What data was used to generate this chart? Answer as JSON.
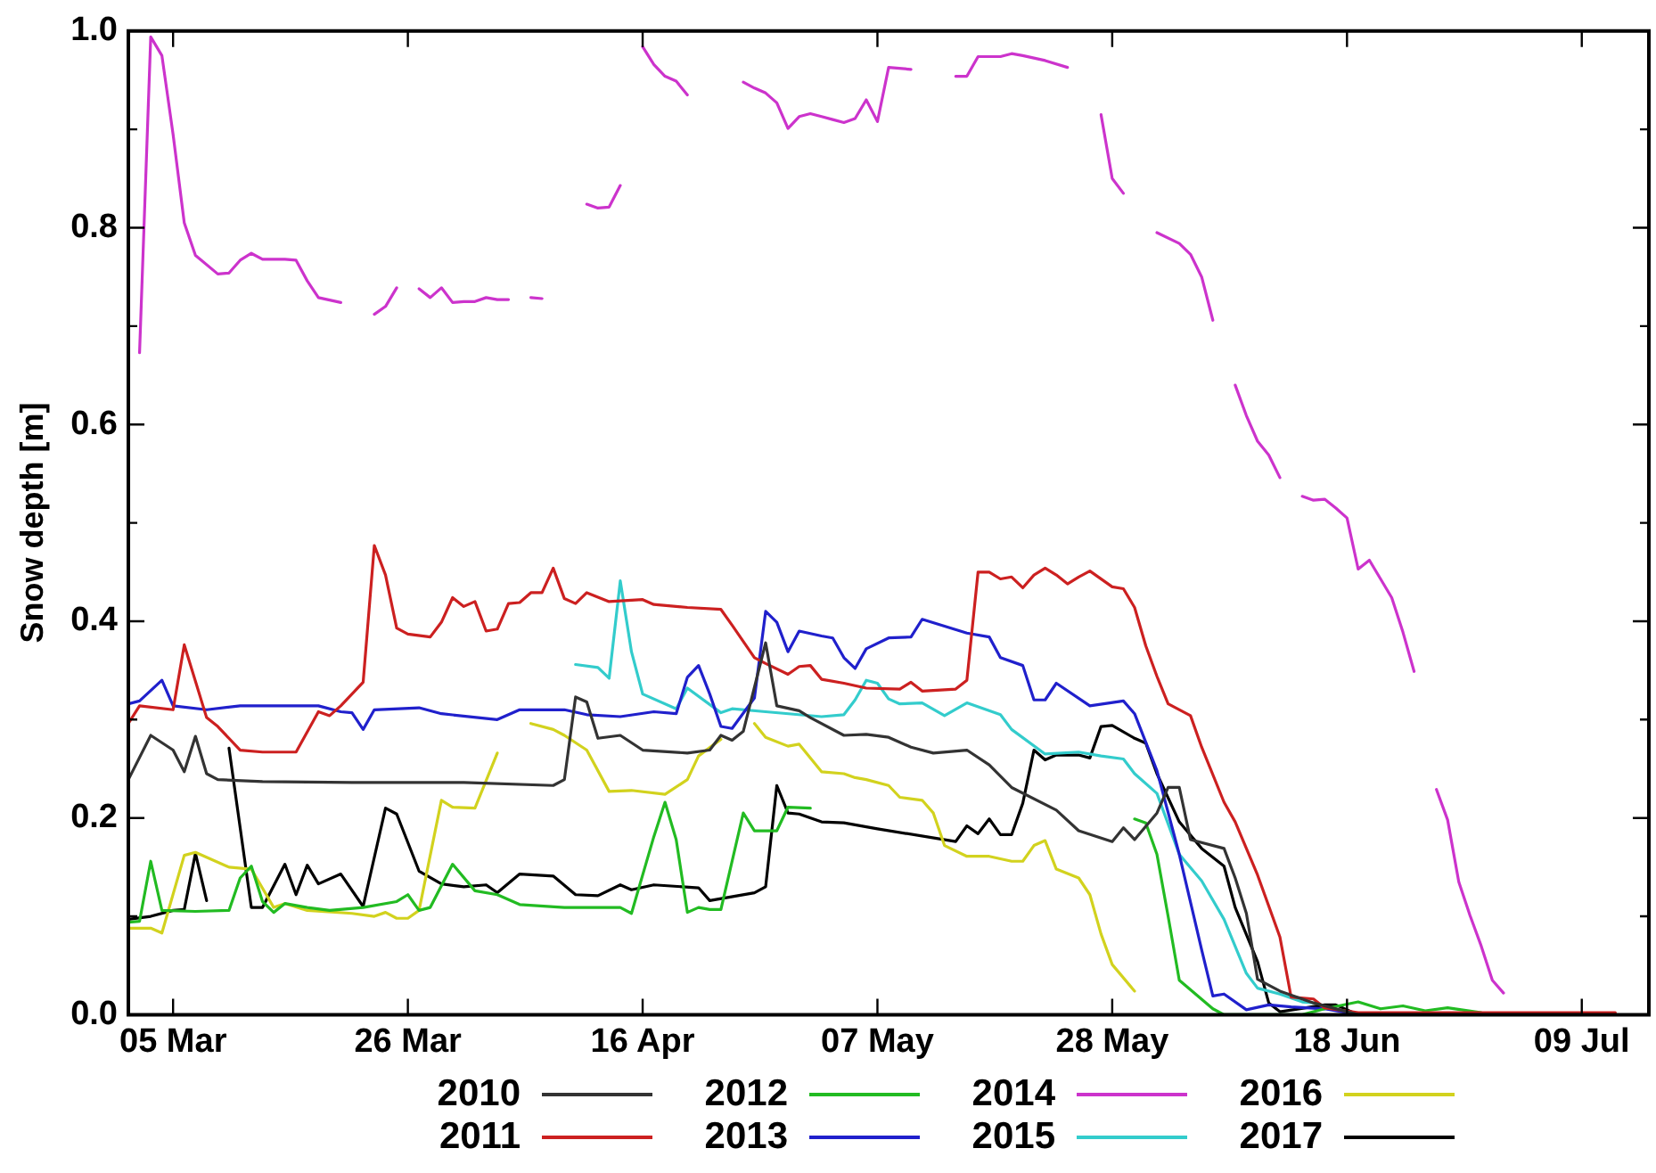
{
  "chart_data": {
    "type": "line",
    "ylabel": "Snow depth [m]",
    "xlim": [
      "--03-01",
      "--07-15"
    ],
    "xticks": [
      {
        "value": "--03-05",
        "label": "05 Mar"
      },
      {
        "value": "--03-26",
        "label": "26 Mar"
      },
      {
        "value": "--04-16",
        "label": "16 Apr"
      },
      {
        "value": "--05-07",
        "label": "07 May"
      },
      {
        "value": "--05-28",
        "label": "28 May"
      },
      {
        "value": "--06-18",
        "label": "18 Jun"
      },
      {
        "value": "--07-09",
        "label": "09 Jul"
      }
    ],
    "ylim": [
      0,
      1
    ],
    "yticks": [
      {
        "value": 0,
        "label": "0.0"
      },
      {
        "value": 0.1,
        "label": null
      },
      {
        "value": 0.2,
        "label": "0.2"
      },
      {
        "value": 0.3,
        "label": null
      },
      {
        "value": 0.4,
        "label": "0.4"
      },
      {
        "value": 0.5,
        "label": null
      },
      {
        "value": 0.6,
        "label": "0.6"
      },
      {
        "value": 0.7,
        "label": null
      },
      {
        "value": 0.8,
        "label": "0.8"
      },
      {
        "value": 0.9,
        "label": null
      },
      {
        "value": 1,
        "label": "1.0"
      }
    ],
    "grid": false,
    "legend": "bottom",
    "marker": "none",
    "line_style": "solid",
    "series": [
      {
        "name": "2010",
        "color": "#333333",
        "x": [
          "--03-01",
          "--03-03",
          "--03-05",
          "--03-06",
          "--03-07",
          "--03-08",
          "--03-09",
          "--03-13",
          "--03-21",
          "--03-31",
          "--04-08",
          "--04-09",
          "--04-10",
          "--04-11",
          "--04-12",
          "--04-14",
          "--04-16",
          "--04-20",
          "--04-22",
          "--04-23",
          "--04-24",
          "--04-25",
          "--04-27",
          "--04-28",
          "--04-30",
          "--05-01",
          "--05-04",
          "--05-06",
          "--05-08",
          "--05-10",
          "--05-12",
          "--05-15",
          "--05-17",
          "--05-19",
          "--05-23",
          "--05-25",
          "--05-28",
          "--05-29",
          "--05-30",
          "--06-01",
          "--06-02",
          "--06-03",
          "--06-04",
          "--06-07",
          "--06-08",
          "--06-09",
          "--06-10",
          "--06-12",
          "--06-15",
          "--06-19",
          "--07-09"
        ],
        "values": [
          0.239,
          0.284,
          0.269,
          0.247,
          0.283,
          0.245,
          0.239,
          0.237,
          0.236,
          0.236,
          0.233,
          0.239,
          0.323,
          0.318,
          0.281,
          0.284,
          0.269,
          0.266,
          0.269,
          0.284,
          0.279,
          0.288,
          0.378,
          0.314,
          0.309,
          0.302,
          0.284,
          0.285,
          0.282,
          0.272,
          0.266,
          0.269,
          0.254,
          0.231,
          0.208,
          0.187,
          0.176,
          0.19,
          0.178,
          0.205,
          0.231,
          0.231,
          0.178,
          0.169,
          0.139,
          0.103,
          0.036,
          0.024,
          0.012,
          0,
          0
        ]
      },
      {
        "name": "2011",
        "color": "#cc2020",
        "x": [
          "--03-01",
          "--03-02",
          "--03-05",
          "--03-06",
          "--03-08",
          "--03-09",
          "--03-11",
          "--03-13",
          "--03-16",
          "--03-18",
          "--03-19",
          "--03-20",
          "--03-22",
          "--03-23",
          "--03-24",
          "--03-25",
          "--03-26",
          "--03-28",
          "--03-29",
          "--03-30",
          "--03-31",
          "--04-01",
          "--04-02",
          "--04-03",
          "--04-04",
          "--04-05",
          "--04-06",
          "--04-07",
          "--04-08",
          "--04-09",
          "--04-10",
          "--04-11",
          "--04-13",
          "--04-16",
          "--04-17",
          "--04-20",
          "--04-23",
          "--04-24",
          "--04-26",
          "--04-27",
          "--04-29",
          "--04-30",
          "--05-01",
          "--05-02",
          "--05-04",
          "--05-06",
          "--05-09",
          "--05-10",
          "--05-11",
          "--05-14",
          "--05-15",
          "--05-16",
          "--05-17",
          "--05-18",
          "--05-19",
          "--05-20",
          "--05-21",
          "--05-22",
          "--05-23",
          "--05-24",
          "--05-25",
          "--05-26",
          "--05-28",
          "--05-29",
          "--05-30",
          "--05-31",
          "--06-01",
          "--06-02",
          "--06-04",
          "--06-05",
          "--06-07",
          "--06-08",
          "--06-10",
          "--06-12",
          "--06-13",
          "--06-15",
          "--06-16",
          "--06-19",
          "--07-09",
          "--07-12"
        ],
        "values": [
          0.296,
          0.314,
          0.31,
          0.376,
          0.302,
          0.293,
          0.269,
          0.267,
          0.267,
          0.308,
          0.304,
          0.314,
          0.338,
          0.477,
          0.447,
          0.393,
          0.387,
          0.384,
          0.399,
          0.424,
          0.415,
          0.42,
          0.39,
          0.392,
          0.418,
          0.419,
          0.429,
          0.429,
          0.454,
          0.423,
          0.418,
          0.429,
          0.42,
          0.422,
          0.417,
          0.414,
          0.412,
          0.396,
          0.363,
          0.357,
          0.346,
          0.354,
          0.355,
          0.341,
          0.337,
          0.332,
          0.331,
          0.338,
          0.329,
          0.331,
          0.34,
          0.45,
          0.45,
          0.443,
          0.445,
          0.434,
          0.447,
          0.454,
          0.447,
          0.438,
          0.445,
          0.451,
          0.435,
          0.433,
          0.414,
          0.375,
          0.344,
          0.316,
          0.304,
          0.272,
          0.216,
          0.196,
          0.142,
          0.079,
          0.018,
          0.016,
          0.007,
          0.002,
          0.002,
          0.002
        ]
      },
      {
        "name": "2012",
        "color": "#22bb22",
        "x": [
          "--03-01",
          "--03-02",
          "--03-03",
          "--03-04",
          "--03-07",
          "--03-10",
          "--03-11",
          "--03-12",
          "--03-13",
          "--03-14",
          "--03-15",
          "--03-17",
          "--03-19",
          "--03-22",
          "--03-25",
          "--03-26",
          "--03-27",
          "--03-28",
          "--03-30",
          "--04-01",
          "--04-03",
          "--04-05",
          "--04-09",
          "--04-14",
          "--04-15",
          "--04-17",
          "--04-18",
          "--04-19",
          "--04-20",
          "--04-21",
          "--04-22",
          "--04-23",
          "--04-25",
          "--04-26",
          "--04-28",
          "--04-29",
          "--05-01",
          "--05-02",
          "--05-29",
          "--05-30",
          "--05-31",
          "--06-01",
          "--06-02",
          "--06-03",
          "--06-06",
          "--06-07",
          "--06-14",
          "--06-16",
          "--06-19",
          "--06-21",
          "--06-23",
          "--06-25",
          "--06-27",
          "--06-30"
        ],
        "values": [
          0.094,
          0.095,
          0.156,
          0.106,
          0.105,
          0.106,
          0.139,
          0.151,
          0.115,
          0.104,
          0.113,
          0.109,
          0.106,
          0.109,
          0.115,
          0.122,
          0.106,
          0.109,
          0.153,
          0.126,
          0.122,
          0.112,
          0.109,
          0.109,
          0.103,
          0.181,
          0.216,
          0.178,
          0.104,
          0.109,
          0.107,
          0.107,
          0.205,
          0.187,
          0.187,
          0.211,
          0.21,
          null,
          null,
          0.199,
          0.195,
          0.163,
          0.1,
          0.035,
          0.006,
          0,
          0,
          0.006,
          0.013,
          0.006,
          0.009,
          0.004,
          0.007,
          0.002
        ]
      },
      {
        "name": "2013",
        "color": "#2020cc",
        "x": [
          "--03-01",
          "--03-02",
          "--03-04",
          "--03-05",
          "--03-08",
          "--03-11",
          "--03-18",
          "--03-20",
          "--03-21",
          "--03-22",
          "--03-23",
          "--03-27",
          "--03-29",
          "--04-03",
          "--04-05",
          "--04-09",
          "--04-11",
          "--04-14",
          "--04-17",
          "--04-19",
          "--04-20",
          "--04-21",
          "--04-22",
          "--04-23",
          "--04-24",
          "--04-26",
          "--04-27",
          "--04-28",
          "--04-29",
          "--04-30",
          "--05-02",
          "--05-03",
          "--05-04",
          "--05-05",
          "--05-06",
          "--05-08",
          "--05-10",
          "--05-11",
          "--05-13",
          "--05-15",
          "--05-17",
          "--05-18",
          "--05-20",
          "--05-21",
          "--05-22",
          "--05-23",
          "--05-26",
          "--05-29",
          "--05-30",
          "--06-01",
          "--06-03",
          "--06-05",
          "--06-06",
          "--06-07",
          "--06-09",
          "--06-11",
          "--06-13",
          "--06-16",
          "--06-19",
          "--07-04"
        ],
        "values": [
          0.316,
          0.319,
          0.34,
          0.314,
          0.31,
          0.314,
          0.314,
          0.308,
          0.307,
          0.29,
          0.31,
          0.312,
          0.306,
          0.3,
          0.31,
          0.31,
          0.305,
          0.303,
          0.308,
          0.306,
          0.343,
          0.355,
          0.326,
          0.293,
          0.291,
          0.322,
          0.41,
          0.399,
          0.369,
          0.39,
          0.385,
          0.383,
          0.363,
          0.352,
          0.372,
          0.383,
          0.384,
          0.402,
          0.395,
          0.388,
          0.384,
          0.363,
          0.355,
          0.32,
          0.32,
          0.337,
          0.314,
          0.319,
          0.306,
          0.248,
          0.163,
          0.066,
          0.019,
          0.021,
          0.005,
          0.01,
          0.008,
          0.006,
          0,
          0
        ]
      },
      {
        "name": "2014",
        "color": "#cc33cc",
        "x": [
          "--03-02",
          "--03-03",
          "--03-04",
          "--03-05",
          "--03-06",
          "--03-07",
          "--03-09",
          "--03-10",
          "--03-11",
          "--03-12",
          "--03-13",
          "--03-15",
          "--03-16",
          "--03-17",
          "--03-18",
          "--03-20",
          "--03-21",
          "--03-23",
          "--03-24",
          "--03-25",
          "--03-26",
          "--03-27",
          "--03-28",
          "--03-29",
          "--03-30",
          "--03-31",
          "--04-01",
          "--04-02",
          "--04-03",
          "--04-04",
          "--04-05",
          "--04-06",
          "--04-07",
          "--04-08",
          "--04-11",
          "--04-12",
          "--04-13",
          "--04-14",
          "--04-15",
          "--04-16",
          "--04-17",
          "--04-18",
          "--04-19",
          "--04-20",
          "--04-21",
          "--04-25",
          "--04-26",
          "--04-27",
          "--04-28",
          "--04-29",
          "--04-30",
          "--05-01",
          "--05-02",
          "--05-03",
          "--05-04",
          "--05-05",
          "--05-06",
          "--05-07",
          "--05-08",
          "--05-10",
          "--05-11",
          "--05-14",
          "--05-15",
          "--05-16",
          "--05-18",
          "--05-19",
          "--05-20",
          "--05-22",
          "--05-24",
          "--05-25",
          "--05-27",
          "--05-28",
          "--05-29",
          "--05-30",
          "--06-01",
          "--06-03",
          "--06-04",
          "--06-05",
          "--06-06",
          "--06-07",
          "--06-08",
          "--06-09",
          "--06-10",
          "--06-11",
          "--06-12",
          "--06-13",
          "--06-14",
          "--06-15",
          "--06-16",
          "--06-17",
          "--06-18",
          "--06-19",
          "--06-20",
          "--06-21",
          "--06-22",
          "--06-23",
          "--06-24",
          "--06-25",
          "--06-26",
          "--06-27",
          "--06-28",
          "--06-29",
          "--06-30",
          "--07-01",
          "--07-02"
        ],
        "values": [
          0.673,
          0.994,
          0.975,
          0.895,
          0.805,
          0.772,
          0.753,
          0.754,
          0.767,
          0.774,
          0.768,
          0.768,
          0.767,
          0.746,
          0.729,
          0.724,
          null,
          0.712,
          0.72,
          0.739,
          null,
          0.738,
          0.729,
          0.739,
          0.724,
          0.725,
          0.725,
          0.729,
          0.727,
          0.727,
          null,
          0.729,
          0.728,
          null,
          0.824,
          0.82,
          0.821,
          0.843,
          null,
          0.984,
          0.966,
          0.954,
          0.949,
          0.935,
          null,
          0.948,
          0.942,
          0.937,
          0.927,
          0.901,
          0.913,
          0.916,
          0.913,
          0.91,
          0.907,
          0.911,
          0.93,
          0.908,
          0.963,
          0.961,
          null,
          0.954,
          0.954,
          0.974,
          0.974,
          0.977,
          0.975,
          0.97,
          0.963,
          null,
          0.915,
          0.85,
          0.835,
          null,
          0.795,
          0.784,
          0.773,
          0.75,
          0.706,
          null,
          0.64,
          0.609,
          0.583,
          0.569,
          0.546,
          null,
          0.527,
          0.523,
          0.524,
          0.515,
          0.505,
          0.453,
          0.462,
          0.443,
          0.424,
          0.389,
          0.349,
          null,
          0.229,
          0.198,
          0.135,
          0.101,
          0.07,
          0.035,
          0.022
        ]
      },
      {
        "name": "2015",
        "color": "#33cccc",
        "x": [
          "--04-10",
          "--04-12",
          "--04-13",
          "--04-14",
          "--04-15",
          "--04-16",
          "--04-19",
          "--04-20",
          "--04-23",
          "--04-24",
          "--04-27",
          "--05-02",
          "--05-04",
          "--05-05",
          "--05-06",
          "--05-07",
          "--05-08",
          "--05-09",
          "--05-11",
          "--05-13",
          "--05-15",
          "--05-18",
          "--05-19",
          "--05-22",
          "--05-25",
          "--05-27",
          "--05-29",
          "--05-30",
          "--06-01",
          "--06-03",
          "--06-05",
          "--06-07",
          "--06-09",
          "--06-10",
          "--06-12",
          "--06-14",
          "--06-15"
        ],
        "values": [
          0.356,
          0.353,
          0.342,
          0.441,
          0.369,
          0.326,
          0.311,
          0.332,
          0.307,
          0.311,
          0.308,
          0.303,
          0.305,
          0.32,
          0.34,
          0.337,
          0.321,
          0.316,
          0.317,
          0.304,
          0.317,
          0.305,
          0.29,
          0.265,
          0.267,
          0.263,
          0.26,
          0.245,
          0.225,
          0.163,
          0.136,
          0.097,
          0.042,
          0.027,
          0.021,
          0.013,
          0.012
        ]
      },
      {
        "name": "2016",
        "color": "#d2d21e",
        "x": [
          "--03-01",
          "--03-03",
          "--03-04",
          "--03-06",
          "--03-07",
          "--03-10",
          "--03-12",
          "--03-14",
          "--03-15",
          "--03-17",
          "--03-21",
          "--03-23",
          "--03-24",
          "--03-25",
          "--03-26",
          "--03-27",
          "--03-29",
          "--03-30",
          "--04-01",
          "--04-03",
          "--04-04",
          "--04-06",
          "--04-08",
          "--04-09",
          "--04-11",
          "--04-13",
          "--04-15",
          "--04-18",
          "--04-20",
          "--04-21",
          "--04-23",
          "--04-24",
          "--04-26",
          "--04-27",
          "--04-29",
          "--04-30",
          "--05-02",
          "--05-04",
          "--05-05",
          "--05-06",
          "--05-08",
          "--05-09",
          "--05-11",
          "--05-12",
          "--05-13",
          "--05-15",
          "--05-17",
          "--05-19",
          "--05-20",
          "--05-21",
          "--05-22",
          "--05-23",
          "--05-25",
          "--05-26",
          "--05-27",
          "--05-28",
          "--05-30"
        ],
        "values": [
          0.088,
          0.088,
          0.083,
          0.162,
          0.165,
          0.15,
          0.148,
          0.109,
          0.113,
          0.106,
          0.103,
          0.1,
          0.104,
          0.098,
          0.098,
          0.106,
          0.218,
          0.211,
          0.21,
          0.266,
          null,
          0.296,
          0.29,
          0.284,
          0.269,
          0.227,
          0.228,
          0.224,
          0.239,
          0.263,
          0.28,
          null,
          0.296,
          0.282,
          0.273,
          0.275,
          0.247,
          0.245,
          0.241,
          0.239,
          0.233,
          0.221,
          0.218,
          0.205,
          0.172,
          0.161,
          0.161,
          0.156,
          0.156,
          0.172,
          0.177,
          0.148,
          0.139,
          0.122,
          0.082,
          0.051,
          0.024
        ]
      },
      {
        "name": "2017",
        "color": "#000000",
        "x": [
          "--03-01",
          "--03-03",
          "--03-05",
          "--03-06",
          "--03-07",
          "--03-08",
          "--03-09",
          "--03-10",
          "--03-12",
          "--03-13",
          "--03-15",
          "--03-16",
          "--03-17",
          "--03-18",
          "--03-20",
          "--03-22",
          "--03-24",
          "--03-25",
          "--03-27",
          "--03-29",
          "--03-31",
          "--04-02",
          "--04-03",
          "--04-05",
          "--04-08",
          "--04-10",
          "--04-12",
          "--04-14",
          "--04-15",
          "--04-17",
          "--04-21",
          "--04-22",
          "--04-26",
          "--04-27",
          "--04-28",
          "--04-29",
          "--04-30",
          "--05-02",
          "--05-04",
          "--05-07",
          "--05-14",
          "--05-15",
          "--05-16",
          "--05-17",
          "--05-18",
          "--05-19",
          "--05-20",
          "--05-21",
          "--05-22",
          "--05-23",
          "--05-25",
          "--05-26",
          "--05-27",
          "--05-28",
          "--05-30",
          "--05-31",
          "--06-01",
          "--06-03",
          "--06-05",
          "--06-07",
          "--06-08",
          "--06-10",
          "--06-11",
          "--06-12",
          "--06-16",
          "--06-17",
          "--06-19",
          "--07-04"
        ],
        "values": [
          0.097,
          0.1,
          0.106,
          0.107,
          0.164,
          0.116,
          null,
          0.271,
          0.109,
          0.109,
          0.153,
          0.122,
          0.152,
          0.133,
          0.143,
          0.11,
          0.21,
          0.204,
          0.146,
          0.133,
          0.13,
          0.132,
          0.124,
          0.143,
          0.141,
          0.122,
          0.121,
          0.132,
          0.127,
          0.132,
          0.129,
          0.116,
          0.124,
          0.13,
          0.233,
          0.205,
          0.204,
          0.196,
          0.195,
          0.189,
          0.176,
          0.192,
          0.184,
          0.199,
          0.183,
          0.183,
          0.215,
          0.269,
          0.259,
          0.264,
          0.264,
          0.261,
          0.293,
          0.294,
          0.281,
          0.276,
          0.245,
          0.196,
          0.169,
          0.151,
          0.109,
          0.054,
          0.012,
          0.003,
          0.01,
          0.01,
          0,
          0
        ]
      }
    ]
  }
}
